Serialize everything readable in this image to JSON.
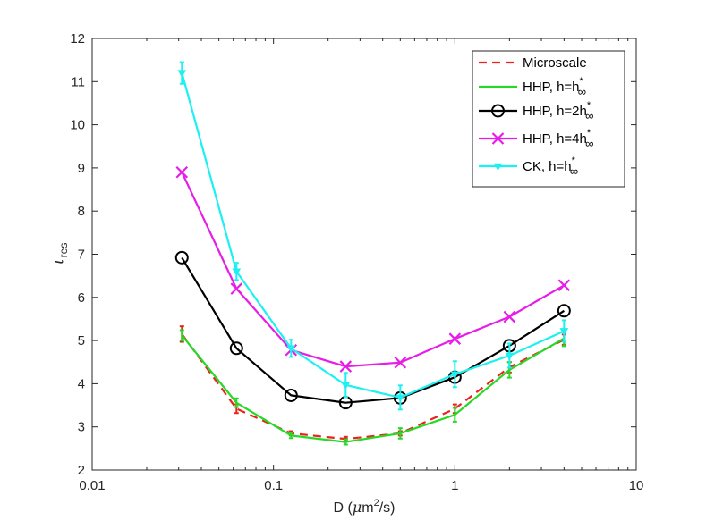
{
  "chart_data": {
    "type": "line",
    "title": "",
    "xlabel": "D (μm²/s)",
    "xlabel_parts": {
      "prefix": "D (",
      "mu": "μ",
      "unit": "m",
      "sup": "2",
      "suffix": "/s)"
    },
    "ylabel": "τ res",
    "ylabel_parts": {
      "symbol": "τ",
      "subscript": "res"
    },
    "xscale": "log",
    "xlim": [
      0.01,
      10
    ],
    "ylim": [
      2,
      12
    ],
    "xticks": [
      0.01,
      0.1,
      1,
      10
    ],
    "xtick_labels": [
      "0.01",
      "0.1",
      "1",
      "10"
    ],
    "yticks": [
      2,
      3,
      4,
      5,
      6,
      7,
      8,
      9,
      10,
      11,
      12
    ],
    "ytick_labels": [
      "2",
      "3",
      "4",
      "5",
      "6",
      "7",
      "8",
      "9",
      "10",
      "11",
      "12"
    ],
    "grid": false,
    "legend_position": "top-right",
    "x": [
      0.03125,
      0.0625,
      0.125,
      0.25,
      0.5,
      1,
      2,
      4
    ],
    "series": [
      {
        "name": "Microscale",
        "legend_label": "Microscale",
        "color": "#e8241c",
        "style": "dashed",
        "marker": "none",
        "values": [
          5.15,
          3.42,
          2.85,
          2.72,
          2.85,
          3.42,
          4.38,
          5.02
        ],
        "errors": [
          0.18,
          0.1,
          0.05,
          0.05,
          0.05,
          0.1,
          0.12,
          0.12
        ]
      },
      {
        "name": "HHP, h=h*∞",
        "legend_label": {
          "main": "HHP, h=h",
          "sup": "*",
          "sub": "∞"
        },
        "color": "#27d927",
        "style": "solid",
        "marker": "none",
        "values": [
          5.12,
          3.56,
          2.8,
          2.65,
          2.85,
          3.28,
          4.32,
          5.05
        ],
        "errors": [
          0.12,
          0.1,
          0.06,
          0.06,
          0.12,
          0.16,
          0.18,
          0.18
        ]
      },
      {
        "name": "HHP, h=2h*∞",
        "legend_label": {
          "main": "HHP, h=2h",
          "sup": "*",
          "sub": "∞"
        },
        "color": "#000000",
        "style": "solid",
        "marker": "circle",
        "values": [
          6.92,
          4.82,
          3.73,
          3.56,
          3.67,
          4.15,
          4.88,
          5.69
        ],
        "errors": []
      },
      {
        "name": "HHP, h=4h*∞",
        "legend_label": {
          "main": "HHP, h=4h",
          "sup": "*",
          "sub": "∞"
        },
        "color": "#e81ce8",
        "style": "solid",
        "marker": "x",
        "values": [
          8.9,
          6.2,
          4.78,
          4.4,
          4.49,
          5.04,
          5.55,
          6.28
        ],
        "errors": []
      },
      {
        "name": "CK, h=h*∞",
        "legend_label": {
          "main": "CK, h=h",
          "sup": "*",
          "sub": "∞"
        },
        "color": "#1cf0f0",
        "style": "solid",
        "marker": "triangle-down",
        "values": [
          11.2,
          6.6,
          4.82,
          3.97,
          3.68,
          4.22,
          4.65,
          5.22
        ],
        "errors": [
          0.25,
          0.2,
          0.2,
          0.28,
          0.28,
          0.3,
          0.28,
          0.25
        ]
      }
    ]
  }
}
